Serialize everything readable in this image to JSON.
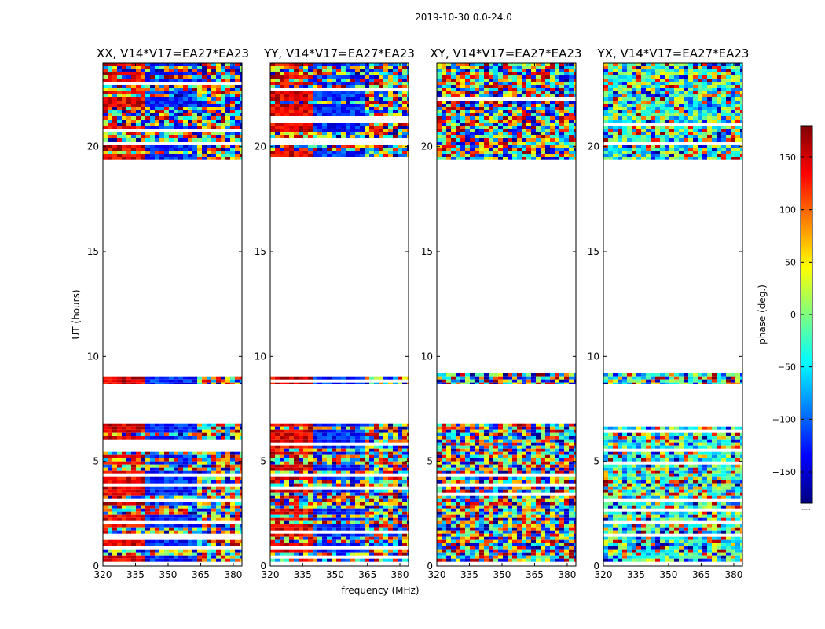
{
  "figure": {
    "suptitle": "2019-10-30 0.0-24.0",
    "xlabel": "frequency (MHz)",
    "ylabel": "UT (hours)",
    "colorbar_label": "phase (deg.)",
    "colorbar_extra": "......"
  },
  "chart_data": {
    "type": "heatmap",
    "colormap": "jet",
    "clim": [
      -180,
      180
    ],
    "colorbar_ticks": [
      150,
      100,
      50,
      0,
      -50,
      -100,
      -150
    ],
    "colorbar_tick_labels": [
      "150",
      "100",
      "50",
      "0",
      "−50",
      "−100",
      "−150"
    ],
    "xlim": [
      320,
      384
    ],
    "ylim": [
      0,
      24
    ],
    "xticks": [
      320,
      335,
      350,
      365,
      380
    ],
    "xtick_labels": [
      "320",
      "335",
      "350",
      "365",
      "380"
    ],
    "yticks": [
      0,
      5,
      10,
      15,
      20
    ],
    "ytick_labels": [
      "0",
      "5",
      "10",
      "15",
      "20"
    ],
    "data_time_ranges_hours": [
      [
        0.2,
        6.8
      ],
      [
        8.7,
        9.2
      ],
      [
        19.4,
        24.0
      ]
    ],
    "panels": [
      {
        "title": "XX, V14*V17=EA27*EA23",
        "pattern": "coherent"
      },
      {
        "title": "YY, V14*V17=EA27*EA23",
        "pattern": "coherent"
      },
      {
        "title": "XY, V14*V17=EA27*EA23",
        "pattern": "noise"
      },
      {
        "title": "YX, V14*V17=EA27*EA23",
        "pattern": "noise-green"
      }
    ]
  }
}
